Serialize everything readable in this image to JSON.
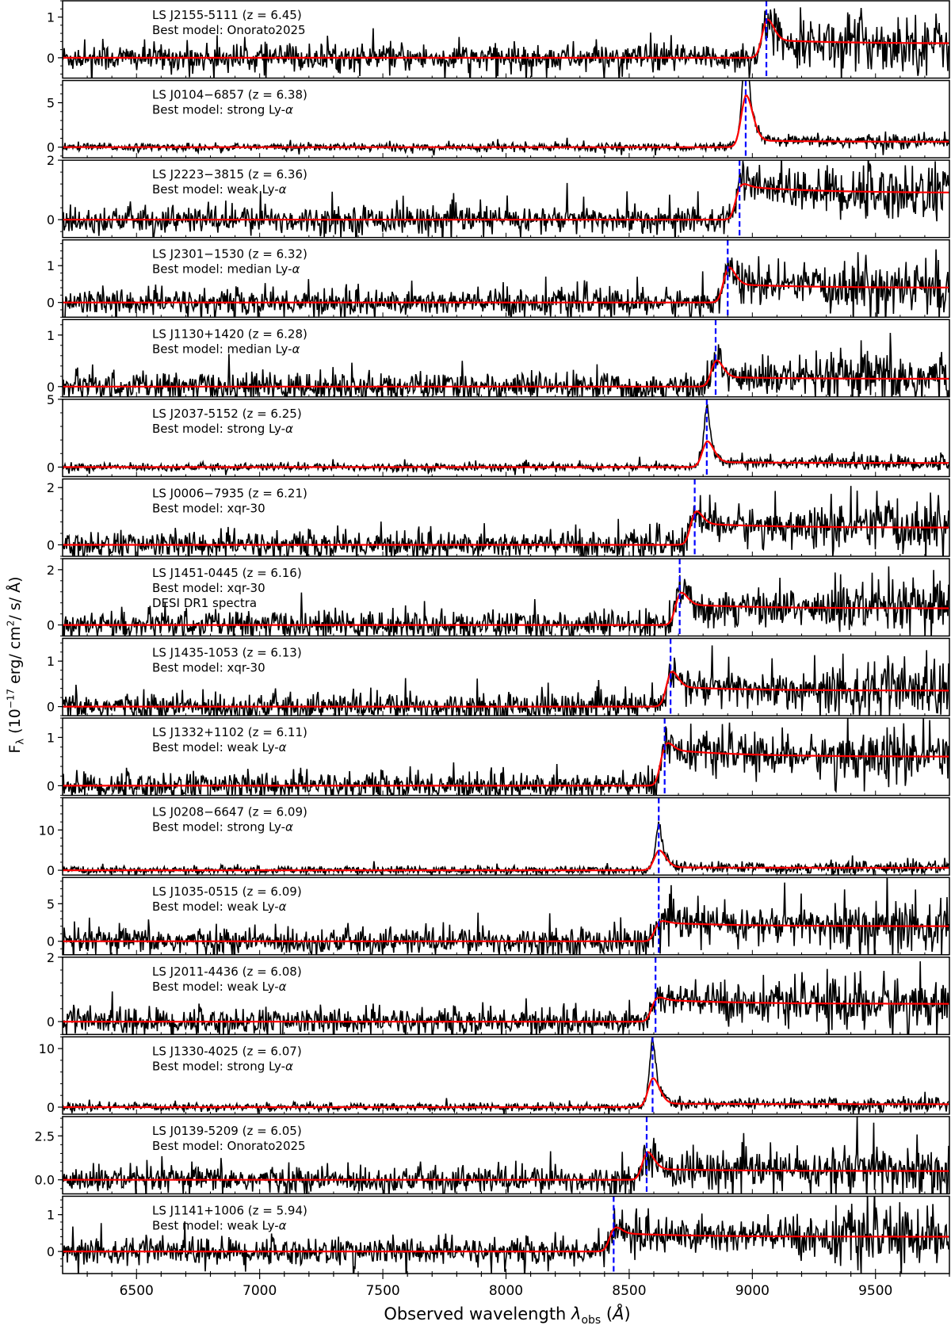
{
  "chart_data": {
    "type": "line",
    "title": "",
    "xlabel": "Observed wavelength λobs (Å)",
    "ylabel": "Fλ (10^-17 erg/ cm^2/ s/ Å)",
    "xlim": [
      6200,
      9800
    ],
    "x_ticks": [
      6500,
      7000,
      7500,
      8000,
      8500,
      9000,
      9500
    ],
    "grid": false,
    "legend": "none; per-panel text annotations at upper left",
    "series_styles": {
      "observed_spectrum": {
        "color": "#000000",
        "style": "solid"
      },
      "best_model": {
        "color": "#ff0000",
        "style": "solid"
      },
      "lya_marker": {
        "color": "#0000ff",
        "style": "dashed"
      }
    },
    "panels": [
      {
        "name": "LS J2155-5111",
        "z": 6.45,
        "model": "Onorato2025",
        "ylim": [
          -0.5,
          1.4
        ],
        "yticks": [
          "0",
          "1"
        ],
        "lya_obs": 9057,
        "peak_flux": 1.0,
        "continuum": 0.35,
        "note": ""
      },
      {
        "name": "LS J0104−6857",
        "z": 6.38,
        "model": "strong Ly-α",
        "ylim": [
          -1.2,
          7.5
        ],
        "yticks": [
          "0",
          "5"
        ],
        "lya_obs": 8973,
        "peak_flux": 6.5,
        "continuum": 0.6,
        "note": ""
      },
      {
        "name": "LS J2223−3815",
        "z": 6.36,
        "model": "weak Ly-α",
        "ylim": [
          -0.6,
          2.0
        ],
        "yticks": [
          "0",
          "2"
        ],
        "lya_obs": 8948,
        "peak_flux": 1.1,
        "continuum": 0.9,
        "note": ""
      },
      {
        "name": "LS J2301−1530",
        "z": 6.32,
        "model": "median Ly-α",
        "ylim": [
          -0.4,
          1.7
        ],
        "yticks": [
          "0",
          "1"
        ],
        "lya_obs": 8900,
        "peak_flux": 1.0,
        "continuum": 0.4,
        "note": ""
      },
      {
        "name": "LS J1130+1420",
        "z": 6.28,
        "model": "median Ly-α",
        "ylim": [
          -0.2,
          1.3
        ],
        "yticks": [
          "0",
          "1"
        ],
        "lya_obs": 8851,
        "peak_flux": 0.55,
        "continuum": 0.15,
        "note": ""
      },
      {
        "name": "LS J2037-5152",
        "z": 6.25,
        "model": "strong Ly-α",
        "ylim": [
          -0.7,
          5.0
        ],
        "yticks": [
          "0",
          "5"
        ],
        "lya_obs": 8815,
        "peak_flux": 2.1,
        "continuum": 0.3,
        "note": ""
      },
      {
        "name": "LS J0006−7935",
        "z": 6.21,
        "model": "xqr-30",
        "ylim": [
          -0.4,
          2.3
        ],
        "yticks": [
          "0",
          "2"
        ],
        "lya_obs": 8766,
        "peak_flux": 1.2,
        "continuum": 0.6,
        "note": ""
      },
      {
        "name": "LS J1451-0445",
        "z": 6.16,
        "model": "xqr-30",
        "ylim": [
          -0.4,
          2.4
        ],
        "yticks": [
          "0",
          "2"
        ],
        "lya_obs": 8705,
        "peak_flux": 1.2,
        "continuum": 0.6,
        "note": "DESI DR1 spectra"
      },
      {
        "name": "LS J1435-1053",
        "z": 6.13,
        "model": "xqr-30",
        "ylim": [
          -0.2,
          1.5
        ],
        "yticks": [
          "0",
          "1"
        ],
        "lya_obs": 8668,
        "peak_flux": 0.8,
        "continuum": 0.35,
        "note": ""
      },
      {
        "name": "LS J1332+1102",
        "z": 6.11,
        "model": "weak Ly-α",
        "ylim": [
          -0.2,
          1.4
        ],
        "yticks": [
          "0",
          "1"
        ],
        "lya_obs": 8644,
        "peak_flux": 0.85,
        "continuum": 0.6,
        "note": ""
      },
      {
        "name": "LS J0208−6647",
        "z": 6.09,
        "model": "strong Ly-α",
        "ylim": [
          -1.2,
          18
        ],
        "yticks": [
          "0",
          "10"
        ],
        "lya_obs": 8620,
        "peak_flux": 5.5,
        "continuum": 0.6,
        "note": ""
      },
      {
        "name": "LS J1035-0515",
        "z": 6.09,
        "model": "weak Ly-α",
        "ylim": [
          -1.8,
          8.5
        ],
        "yticks": [
          "0",
          "5"
        ],
        "lya_obs": 8620,
        "peak_flux": 2.5,
        "continuum": 2.0,
        "note": ""
      },
      {
        "name": "LS J2011-4436",
        "z": 6.08,
        "model": "weak Ly-α",
        "ylim": [
          -0.4,
          2.0
        ],
        "yticks": [
          "0",
          "2"
        ],
        "lya_obs": 8607,
        "peak_flux": 0.7,
        "continuum": 0.55,
        "note": ""
      },
      {
        "name": "LS J1330-4025",
        "z": 6.07,
        "model": "strong Ly-α",
        "ylim": [
          -1.2,
          12
        ],
        "yticks": [
          "0",
          "10"
        ],
        "lya_obs": 8595,
        "peak_flux": 5.5,
        "continuum": 0.5,
        "note": ""
      },
      {
        "name": "LS J0139-5209",
        "z": 6.05,
        "model": "Onorato2025",
        "ylim": [
          -0.8,
          3.6
        ],
        "yticks": [
          "0.0",
          "2.5"
        ],
        "lya_obs": 8571,
        "peak_flux": 1.7,
        "continuum": 0.5,
        "note": ""
      },
      {
        "name": "LS J1141+1006",
        "z": 5.94,
        "model": "weak Ly-α",
        "ylim": [
          -0.6,
          1.5
        ],
        "yticks": [
          "0",
          "1"
        ],
        "lya_obs": 8437,
        "peak_flux": 0.65,
        "continuum": 0.4,
        "note": ""
      }
    ]
  },
  "labels": {
    "model_prefix": "Best model: ",
    "x_axis": "Observed wavelength λobs (Å)",
    "y_axis": "Fλ (10⁻¹⁷ erg/ cm²/ s/ Å)"
  }
}
